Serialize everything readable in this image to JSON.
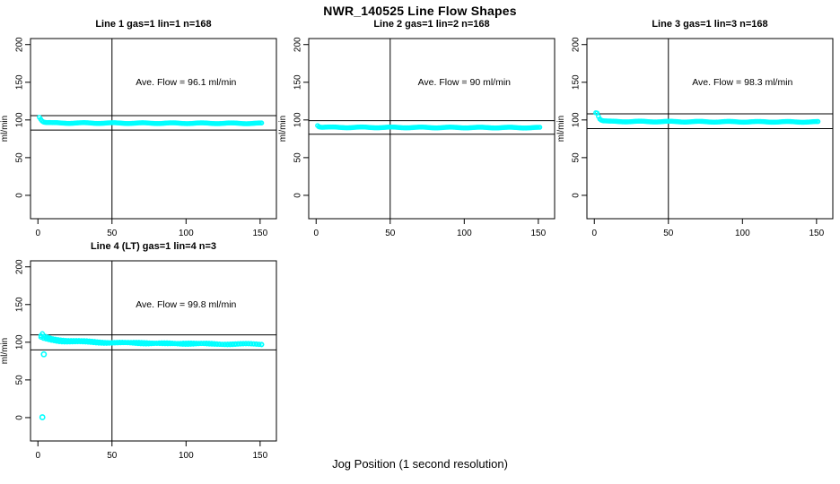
{
  "figure": {
    "title": "NWR_140525  Line Flow Shapes",
    "xlabel": "Jog Position (1 second resolution)",
    "ylabel": "ml/min",
    "background": "#ffffff",
    "data_color": "#00ffff",
    "axis_color": "#000000"
  },
  "chart_data": [
    {
      "type": "scatter",
      "title": "Line 1 gas=1 lin=1 n=168",
      "annotation": "Ave. Flow =  96.1  ml/min",
      "ave_flow_ml_min": 96.1,
      "vline_x": 50,
      "hlines": [
        105.7,
        86.5
      ],
      "xlim": [
        -5,
        161
      ],
      "ylim": [
        -31,
        208
      ],
      "xticks": [
        0,
        50,
        100,
        150
      ],
      "yticks": [
        0,
        50,
        100,
        150,
        200
      ],
      "annotation_at": [
        100,
        150
      ],
      "series": [
        {
          "name": "line1-flow",
          "n_points": 168,
          "x_range": [
            1,
            151
          ],
          "wiggle": 0.5,
          "profile": [
            [
              1,
              104
            ],
            [
              2,
              101
            ],
            [
              3,
              98.5
            ],
            [
              4,
              97.3
            ],
            [
              6,
              96.5
            ],
            [
              10,
              96
            ],
            [
              60,
              95.8
            ],
            [
              151,
              95.5
            ]
          ]
        }
      ],
      "outliers": []
    },
    {
      "type": "scatter",
      "title": "Line 2 gas=1 lin=2 n=168",
      "annotation": "Ave. Flow =  90  ml/min",
      "ave_flow_ml_min": 90,
      "vline_x": 50,
      "hlines": [
        99,
        81
      ],
      "xlim": [
        -5,
        161
      ],
      "ylim": [
        -31,
        208
      ],
      "xticks": [
        0,
        50,
        100,
        150
      ],
      "yticks": [
        0,
        50,
        100,
        150,
        200
      ],
      "annotation_at": [
        100,
        150
      ],
      "series": [
        {
          "name": "line2-flow",
          "n_points": 168,
          "x_range": [
            1,
            151
          ],
          "wiggle": 0.5,
          "profile": [
            [
              1,
              93
            ],
            [
              2,
              91.2
            ],
            [
              4,
              90.5
            ],
            [
              10,
              90.2
            ],
            [
              151,
              89.8
            ]
          ]
        }
      ],
      "outliers": []
    },
    {
      "type": "scatter",
      "title": "Line 3 gas=1 lin=3 n=168",
      "annotation": "Ave. Flow =  98.3  ml/min",
      "ave_flow_ml_min": 98.3,
      "vline_x": 50,
      "hlines": [
        108.1,
        88.5
      ],
      "xlim": [
        -5,
        161
      ],
      "ylim": [
        -31,
        208
      ],
      "xticks": [
        0,
        50,
        100,
        150
      ],
      "yticks": [
        0,
        50,
        100,
        150,
        200
      ],
      "annotation_at": [
        100,
        150
      ],
      "series": [
        {
          "name": "line3-flow",
          "n_points": 168,
          "x_range": [
            1,
            151
          ],
          "wiggle": 0.5,
          "profile": [
            [
              1,
              110
            ],
            [
              2,
              109.5
            ],
            [
              3,
              104
            ],
            [
              4,
              100.5
            ],
            [
              6,
              98.8
            ],
            [
              10,
              98
            ],
            [
              80,
              97.6
            ],
            [
              151,
              97.4
            ]
          ]
        }
      ],
      "outliers": []
    },
    {
      "type": "scatter",
      "title": "Line 4 (LT) gas=1 lin=4 n=3",
      "annotation": "Ave. Flow =  99.8  ml/min",
      "ave_flow_ml_min": 99.8,
      "vline_x": 50,
      "hlines": [
        109.8,
        89.8
      ],
      "xlim": [
        -5,
        161
      ],
      "ylim": [
        -31,
        208
      ],
      "xticks": [
        0,
        50,
        100,
        150
      ],
      "yticks": [
        0,
        50,
        100,
        150,
        200
      ],
      "annotation_at": [
        100,
        150
      ],
      "series": [
        {
          "name": "line4-flow-a",
          "n_points": 85,
          "x_range": [
            2,
            151
          ],
          "wiggle": 0.7,
          "profile": [
            [
              2,
              108
            ],
            [
              4,
              106.3
            ],
            [
              8,
              104.4
            ],
            [
              15,
              102.4
            ],
            [
              30,
              100.7
            ],
            [
              60,
              99.2
            ],
            [
              100,
              98.3
            ],
            [
              151,
              97.5
            ]
          ]
        },
        {
          "name": "line4-flow-b",
          "n_points": 85,
          "x_range": [
            2,
            151
          ],
          "wiggle": 0.7,
          "profile": [
            [
              2,
              106
            ],
            [
              4,
              104.3
            ],
            [
              8,
              102.8
            ],
            [
              15,
              101.3
            ],
            [
              30,
              99.8
            ],
            [
              60,
              98.7
            ],
            [
              100,
              97.9
            ],
            [
              151,
              97.1
            ]
          ]
        },
        {
          "name": "line4-flow-c",
          "n_points": 85,
          "x_range": [
            3,
            151
          ],
          "wiggle": 0.7,
          "profile": [
            [
              3,
              111
            ],
            [
              5,
              107.5
            ],
            [
              10,
              105
            ],
            [
              20,
              102.7
            ],
            [
              40,
              100.4
            ],
            [
              70,
              99.1
            ],
            [
              110,
              98.1
            ],
            [
              151,
              97.3
            ]
          ]
        }
      ],
      "outliers": [
        [
          4,
          84
        ],
        [
          3,
          0.5
        ]
      ]
    }
  ]
}
